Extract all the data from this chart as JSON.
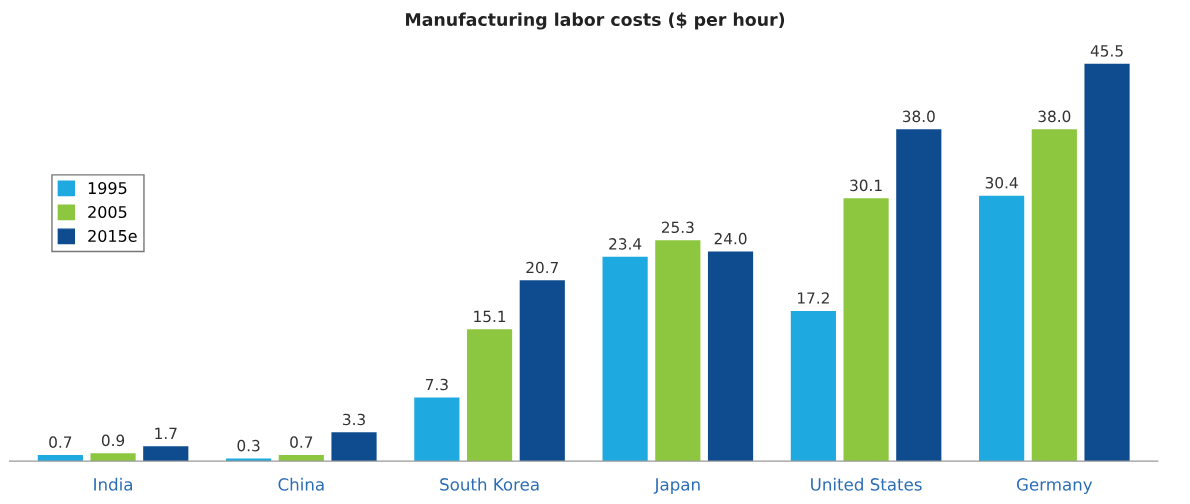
{
  "chart_data": {
    "type": "bar",
    "title": "Manufacturing labor costs ($ per hour)",
    "categories": [
      "India",
      "China",
      "South Korea",
      "Japan",
      "United States",
      "Germany"
    ],
    "series": [
      {
        "name": "1995",
        "color": "#1fa9e1",
        "values": [
          0.7,
          0.3,
          7.3,
          23.4,
          17.2,
          30.4
        ],
        "value_labels": [
          "0.7",
          "0.3",
          "7.3",
          "23.4",
          "17.2",
          "30.4"
        ]
      },
      {
        "name": "2005",
        "color": "#8dc63f",
        "values": [
          0.9,
          0.7,
          15.1,
          25.3,
          30.1,
          38.0
        ],
        "value_labels": [
          "0.9",
          "0.7",
          "15.1",
          "25.3",
          "30.1",
          "38.0"
        ]
      },
      {
        "name": "2015e",
        "color": "#0f4c8f",
        "values": [
          1.7,
          3.3,
          20.7,
          24.0,
          38.0,
          45.5
        ],
        "value_labels": [
          "1.7",
          "3.3",
          "20.7",
          "24.0",
          "38.0",
          "45.5"
        ]
      }
    ],
    "legend": "left",
    "grid": false,
    "tick_labels": "x"
  }
}
